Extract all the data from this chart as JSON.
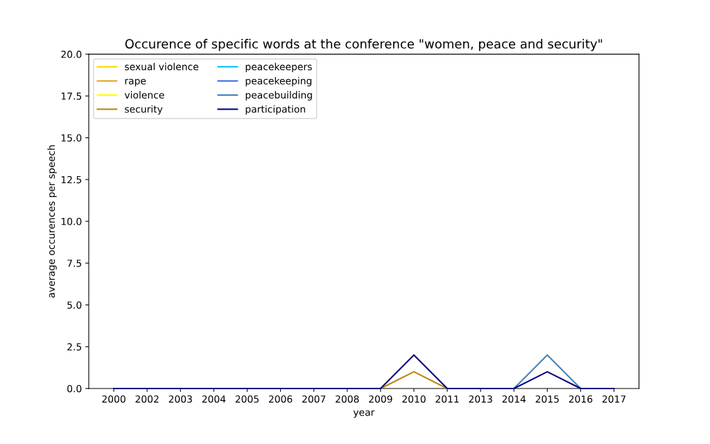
{
  "chart_data": {
    "type": "line",
    "title": "Occurence of specific words at the conference \"women, peace and security\"",
    "xlabel": "year",
    "ylabel": "average occurences per speech",
    "categories": [
      "2000",
      "2002",
      "2003",
      "2004",
      "2005",
      "2006",
      "2007",
      "2008",
      "2009",
      "2010",
      "2011",
      "2013",
      "2014",
      "2015",
      "2016",
      "2017"
    ],
    "series": [
      {
        "name": "sexual violence",
        "color": "#ffd700",
        "values": [
          null,
          null,
          null,
          null,
          null,
          null,
          null,
          null,
          null,
          null,
          null,
          null,
          null,
          null,
          null,
          null
        ]
      },
      {
        "name": "rape",
        "color": "#daa520",
        "values": [
          null,
          null,
          null,
          null,
          null,
          null,
          null,
          null,
          null,
          null,
          null,
          null,
          null,
          null,
          null,
          null
        ]
      },
      {
        "name": "violence",
        "color": "#ffff00",
        "values": [
          null,
          null,
          null,
          null,
          null,
          null,
          null,
          null,
          null,
          null,
          null,
          null,
          null,
          null,
          null,
          null
        ]
      },
      {
        "name": "security",
        "color": "#b8860b",
        "values": [
          null,
          null,
          null,
          null,
          null,
          null,
          null,
          null,
          0,
          1,
          0,
          null,
          null,
          null,
          null,
          null
        ]
      },
      {
        "name": "peacekeepers",
        "color": "#00bfff",
        "values": [
          null,
          null,
          null,
          null,
          null,
          null,
          null,
          null,
          null,
          null,
          null,
          null,
          null,
          null,
          null,
          null
        ]
      },
      {
        "name": "peacekeeping",
        "color": "#4169e1",
        "values": [
          null,
          null,
          null,
          null,
          null,
          null,
          null,
          null,
          null,
          null,
          null,
          null,
          null,
          null,
          null,
          null
        ]
      },
      {
        "name": "peacebuilding",
        "color": "#4682b4",
        "values": [
          null,
          null,
          null,
          null,
          null,
          null,
          null,
          null,
          null,
          null,
          null,
          null,
          0,
          2,
          0,
          null
        ]
      },
      {
        "name": "participation",
        "color": "#000080",
        "values": [
          0,
          0,
          0,
          0,
          0,
          0,
          0,
          0,
          0,
          2,
          0,
          0,
          0,
          1,
          0,
          0
        ]
      }
    ],
    "ylim": [
      0,
      20
    ],
    "yticks": [
      {
        "value": 0,
        "label": "0.0"
      },
      {
        "value": 2.5,
        "label": "2.5"
      },
      {
        "value": 5,
        "label": "5.0"
      },
      {
        "value": 7.5,
        "label": "7.5"
      },
      {
        "value": 10,
        "label": "10.0"
      },
      {
        "value": 12.5,
        "label": "12.5"
      },
      {
        "value": 15,
        "label": "15.0"
      },
      {
        "value": 17.5,
        "label": "17.5"
      },
      {
        "value": 20,
        "label": "20.0"
      }
    ],
    "legend": "top left",
    "grid": false,
    "line_style": "solid",
    "marker": "none"
  }
}
